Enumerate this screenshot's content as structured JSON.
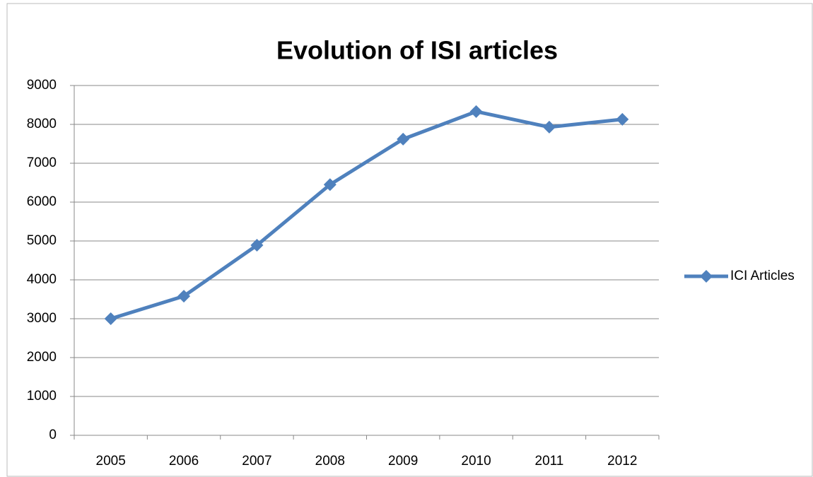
{
  "chart_data": {
    "type": "line",
    "title": "Evolution of ISI articles",
    "categories": [
      "2005",
      "2006",
      "2007",
      "2008",
      "2009",
      "2010",
      "2011",
      "2012"
    ],
    "series": [
      {
        "name": "ICI Articles",
        "color": "#4f81bd",
        "values": [
          3000,
          3580,
          4890,
          6450,
          7620,
          8330,
          7930,
          8130
        ]
      }
    ],
    "ylim": [
      0,
      9000
    ],
    "yticks": [
      0,
      1000,
      2000,
      3000,
      4000,
      5000,
      6000,
      7000,
      8000,
      9000
    ],
    "grid": true,
    "legend": "right"
  }
}
